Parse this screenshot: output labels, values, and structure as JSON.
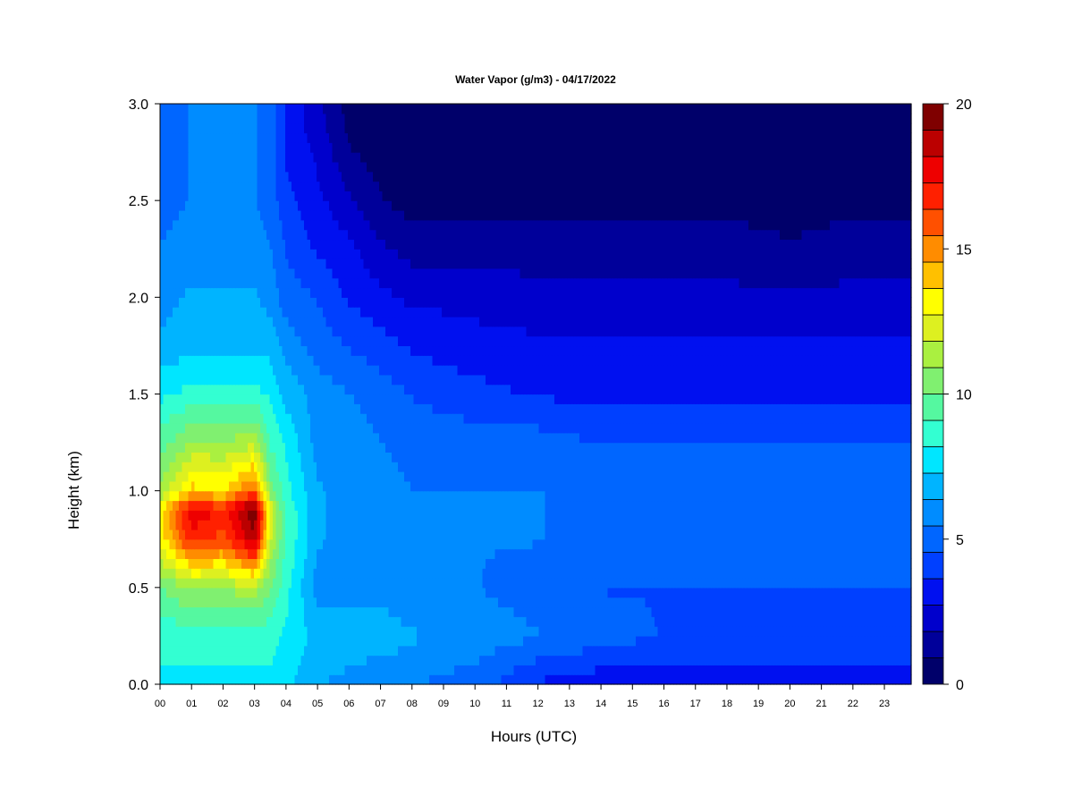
{
  "chart_data": {
    "type": "heatmap",
    "title": "Water Vapor (g/m3) - 04/17/2022",
    "xlabel": "Hours (UTC)",
    "ylabel": "Height (km)",
    "x_ticks": [
      "00",
      "01",
      "02",
      "03",
      "04",
      "05",
      "06",
      "07",
      "08",
      "09",
      "10",
      "11",
      "12",
      "13",
      "14",
      "15",
      "16",
      "17",
      "18",
      "19",
      "20",
      "21",
      "22",
      "23"
    ],
    "xlim": [
      0,
      23.85
    ],
    "y_ticks": [
      "0.0",
      "0.5",
      "1.0",
      "1.5",
      "2.0",
      "2.5",
      "3.0"
    ],
    "ylim": [
      0,
      3.0
    ],
    "colorbar": {
      "min": 0,
      "max": 20,
      "levels": 20,
      "ticks": [
        "0",
        "5",
        "10",
        "15",
        "20"
      ],
      "colors": [
        "#00006A",
        "#00009A",
        "#0000CC",
        "#0010F0",
        "#0040FF",
        "#0066FF",
        "#008CFF",
        "#00B4FF",
        "#00E6FF",
        "#33FFD2",
        "#55F8A0",
        "#80F070",
        "#AAF040",
        "#DDF020",
        "#FFFF00",
        "#FFC000",
        "#FF8C00",
        "#FF5000",
        "#FF2000",
        "#EE0000",
        "#BB0000",
        "#7F0000"
      ]
    },
    "x_hours": [
      0.0,
      1.0,
      2.0,
      3.0,
      3.5,
      4.0,
      5.0,
      6.0,
      7.0,
      8.0,
      10.0,
      12.0,
      14.0,
      16.0,
      18.0,
      20.0,
      22.0,
      23.85
    ],
    "y_km": [
      0.0,
      0.25,
      0.5,
      0.75,
      0.9,
      1.0,
      1.25,
      1.5,
      1.75,
      2.0,
      2.25,
      2.5,
      2.75,
      3.0
    ],
    "z_gm3": [
      [
        8.0,
        8.0,
        8.0,
        8.0,
        8.0,
        7.5,
        6.5,
        6.0,
        5.5,
        5.5,
        5.0,
        3.5,
        3.0,
        3.0,
        3.0,
        3.0,
        3.0,
        3.0
      ],
      [
        8.5,
        8.5,
        8.5,
        8.5,
        8.5,
        8.0,
        7.0,
        7.0,
        7.0,
        6.5,
        6.0,
        5.5,
        5.0,
        4.5,
        4.5,
        4.5,
        4.5,
        4.5
      ],
      [
        10.0,
        11.0,
        11.0,
        11.5,
        10.0,
        8.5,
        6.0,
        6.0,
        6.0,
        5.5,
        5.5,
        5.0,
        4.5,
        4.5,
        4.5,
        4.5,
        4.5,
        4.5
      ],
      [
        13.0,
        17.0,
        16.0,
        19.0,
        12.0,
        9.0,
        6.5,
        6.0,
        6.0,
        5.5,
        5.5,
        5.5,
        5.0,
        5.0,
        5.0,
        5.0,
        5.0,
        5.0
      ],
      [
        13.5,
        18.0,
        17.0,
        20.0,
        12.5,
        9.0,
        6.5,
        6.0,
        6.0,
        5.5,
        5.5,
        5.5,
        5.0,
        5.0,
        5.0,
        5.0,
        5.0,
        5.0
      ],
      [
        11.0,
        14.0,
        13.5,
        16.0,
        10.5,
        8.5,
        6.5,
        6.0,
        6.0,
        5.5,
        5.5,
        5.5,
        5.0,
        5.0,
        5.0,
        5.0,
        5.0,
        5.0
      ],
      [
        9.5,
        11.0,
        11.0,
        11.5,
        9.0,
        8.0,
        6.0,
        6.0,
        5.5,
        5.0,
        5.0,
        5.0,
        4.5,
        4.5,
        4.5,
        4.5,
        4.5,
        4.5
      ],
      [
        8.0,
        8.5,
        8.5,
        8.5,
        8.0,
        7.0,
        6.0,
        5.5,
        5.0,
        4.5,
        4.0,
        3.5,
        3.5,
        3.5,
        3.5,
        3.5,
        3.5,
        3.5
      ],
      [
        6.5,
        7.0,
        7.0,
        7.0,
        7.0,
        6.0,
        5.0,
        4.5,
        4.0,
        3.5,
        3.0,
        3.0,
        3.0,
        3.0,
        3.0,
        3.0,
        3.0,
        3.0
      ],
      [
        6.0,
        6.5,
        6.5,
        6.5,
        6.0,
        5.0,
        4.5,
        3.5,
        3.0,
        2.5,
        2.5,
        2.0,
        2.0,
        2.0,
        2.0,
        2.0,
        2.0,
        2.0
      ],
      [
        5.5,
        6.0,
        6.0,
        6.0,
        5.5,
        4.5,
        3.5,
        3.0,
        2.0,
        1.5,
        1.5,
        1.5,
        1.5,
        1.5,
        1.5,
        1.0,
        1.5,
        1.5
      ],
      [
        5.0,
        5.5,
        5.5,
        5.5,
        5.0,
        4.0,
        3.0,
        2.0,
        1.0,
        0.5,
        0.5,
        0.5,
        0.5,
        0.5,
        0.5,
        0.5,
        0.5,
        0.5
      ],
      [
        5.0,
        5.5,
        5.5,
        5.5,
        5.0,
        3.5,
        2.5,
        1.0,
        0.5,
        0.5,
        0.5,
        0.5,
        0.5,
        0.5,
        0.5,
        0.5,
        0.5,
        0.5
      ],
      [
        5.0,
        5.5,
        5.5,
        5.5,
        5.0,
        3.5,
        2.0,
        0.5,
        0.5,
        0.5,
        0.5,
        0.5,
        0.5,
        0.5,
        0.5,
        0.5,
        0.5,
        0.5
      ]
    ]
  }
}
